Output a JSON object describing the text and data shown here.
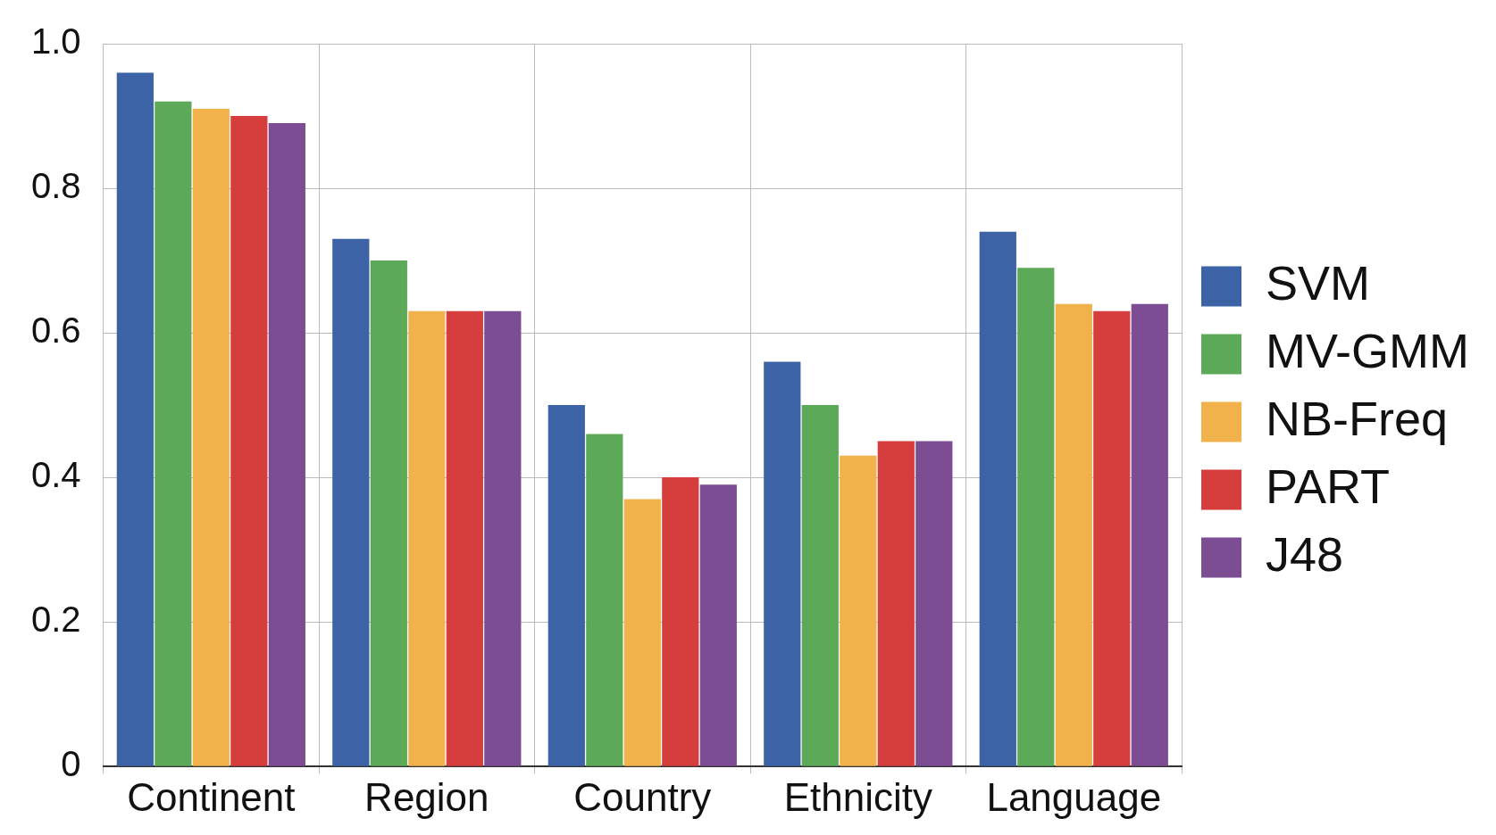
{
  "chart_data": {
    "type": "bar",
    "categories": [
      "Continent",
      "Region",
      "Country",
      "Ethnicity",
      "Language"
    ],
    "series": [
      {
        "name": "SVM",
        "color": "#3b63a5",
        "values": [
          0.96,
          0.73,
          0.5,
          0.56,
          0.74
        ]
      },
      {
        "name": "MV-GMM",
        "color": "#5ca957",
        "values": [
          0.92,
          0.7,
          0.46,
          0.5,
          0.69
        ]
      },
      {
        "name": "NB-Freq",
        "color": "#f1b14b",
        "values": [
          0.91,
          0.63,
          0.37,
          0.43,
          0.64
        ]
      },
      {
        "name": "PART",
        "color": "#d63d3d",
        "values": [
          0.9,
          0.63,
          0.4,
          0.45,
          0.63
        ]
      },
      {
        "name": "J48",
        "color": "#7d4d93",
        "values": [
          0.89,
          0.63,
          0.39,
          0.45,
          0.64
        ]
      }
    ],
    "ylim": [
      0,
      1
    ],
    "yticks": [
      0,
      0.2,
      0.4,
      0.6,
      0.8,
      {
        "value": 1,
        "label": "1.0"
      }
    ],
    "grid": true,
    "legend": "right"
  }
}
